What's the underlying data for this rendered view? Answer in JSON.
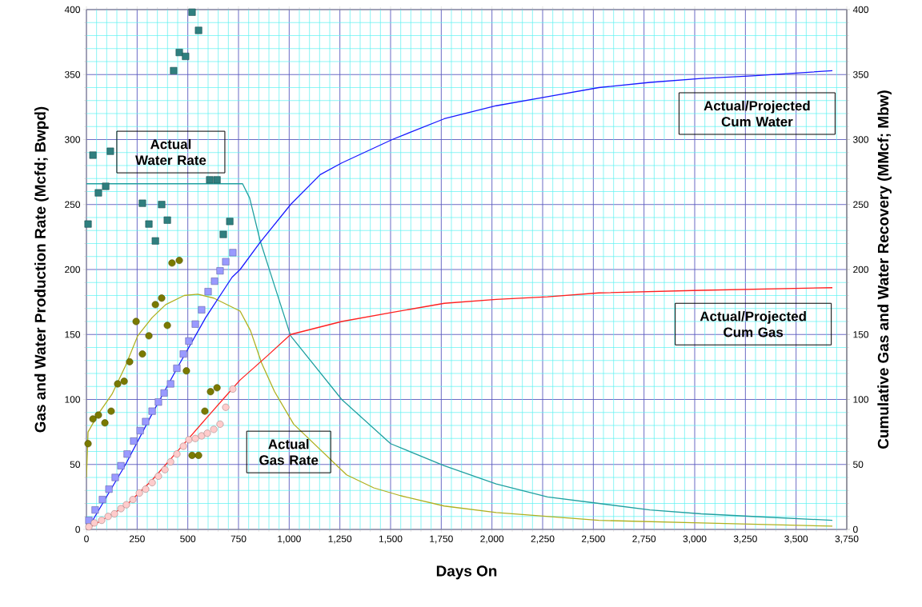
{
  "chart_data": {
    "type": "scatter",
    "xlabel": "Days On",
    "ylabel": "Gas and Water Production Rate (Mcfd; Bwpd)",
    "y2label": "Cumulative Gas and Water Recovery (MMcf; Mbw)",
    "annotations": [
      "Actual Water Rate",
      "Actual Gas Rate",
      "Actual/Projected Cum Water",
      "Actual/Projected Cum Gas"
    ],
    "xlim": [
      0,
      3750
    ],
    "ylim": [
      0,
      400
    ],
    "y2lim": [
      0,
      400
    ],
    "xticks": [
      0,
      {
        "value": 50,
        "label": null
      },
      {
        "value": 100,
        "label": null
      },
      {
        "value": 150,
        "label": null
      },
      {
        "value": 200,
        "label": null
      },
      250,
      {
        "value": 300,
        "label": null
      },
      {
        "value": 350,
        "label": null
      },
      {
        "value": 400,
        "label": null
      },
      {
        "value": 450,
        "label": null
      },
      500,
      {
        "value": 550,
        "label": null
      },
      {
        "value": 600,
        "label": null
      },
      {
        "value": 650,
        "label": null
      },
      {
        "value": 700,
        "label": null
      },
      750,
      {
        "value": 800,
        "label": null
      },
      {
        "value": 850,
        "label": null
      },
      {
        "value": 900,
        "label": null
      },
      {
        "value": 950,
        "label": null
      },
      {
        "value": 1000,
        "label": "1,000"
      },
      {
        "value": 1050,
        "label": null
      },
      {
        "value": 1100,
        "label": null
      },
      {
        "value": 1150,
        "label": null
      },
      {
        "value": 1200,
        "label": null
      },
      {
        "value": 1250,
        "label": "1,250"
      },
      {
        "value": 1300,
        "label": null
      },
      {
        "value": 1350,
        "label": null
      },
      {
        "value": 1400,
        "label": null
      },
      {
        "value": 1450,
        "label": null
      },
      {
        "value": 1500,
        "label": "1,500"
      },
      {
        "value": 1550,
        "label": null
      },
      {
        "value": 1600,
        "label": null
      },
      {
        "value": 1650,
        "label": null
      },
      {
        "value": 1700,
        "label": null
      },
      {
        "value": 1750,
        "label": "1,750"
      },
      {
        "value": 1800,
        "label": null
      },
      {
        "value": 1850,
        "label": null
      },
      {
        "value": 1900,
        "label": null
      },
      {
        "value": 1950,
        "label": null
      },
      {
        "value": 2000,
        "label": "2,000"
      },
      {
        "value": 2050,
        "label": null
      },
      {
        "value": 2100,
        "label": null
      },
      {
        "value": 2150,
        "label": null
      },
      {
        "value": 2200,
        "label": null
      },
      {
        "value": 2250,
        "label": "2,250"
      },
      {
        "value": 2300,
        "label": null
      },
      {
        "value": 2350,
        "label": null
      },
      {
        "value": 2400,
        "label": null
      },
      {
        "value": 2450,
        "label": null
      },
      {
        "value": 2500,
        "label": "2,500"
      },
      {
        "value": 2550,
        "label": null
      },
      {
        "value": 2600,
        "label": null
      },
      {
        "value": 2650,
        "label": null
      },
      {
        "value": 2700,
        "label": null
      },
      {
        "value": 2750,
        "label": "2,750"
      },
      {
        "value": 2800,
        "label": null
      },
      {
        "value": 2850,
        "label": null
      },
      {
        "value": 2900,
        "label": null
      },
      {
        "value": 2950,
        "label": null
      },
      {
        "value": 3000,
        "label": "3,000"
      },
      {
        "value": 3050,
        "label": null
      },
      {
        "value": 3100,
        "label": null
      },
      {
        "value": 3150,
        "label": null
      },
      {
        "value": 3200,
        "label": null
      },
      {
        "value": 3250,
        "label": "3,250"
      },
      {
        "value": 3300,
        "label": null
      },
      {
        "value": 3350,
        "label": null
      },
      {
        "value": 3400,
        "label": null
      },
      {
        "value": 3450,
        "label": null
      },
      {
        "value": 3500,
        "label": "3,500"
      },
      {
        "value": 3550,
        "label": null
      },
      {
        "value": 3600,
        "label": null
      },
      {
        "value": 3650,
        "label": null
      },
      {
        "value": 3700,
        "label": null
      },
      {
        "value": 3750,
        "label": "3,750"
      }
    ],
    "yticks": [
      0,
      {
        "value": 10,
        "label": null
      },
      {
        "value": 20,
        "label": null
      },
      {
        "value": 30,
        "label": null
      },
      {
        "value": 40,
        "label": null
      },
      50,
      {
        "value": 60,
        "label": null
      },
      {
        "value": 70,
        "label": null
      },
      {
        "value": 80,
        "label": null
      },
      {
        "value": 90,
        "label": null
      },
      100,
      {
        "value": 110,
        "label": null
      },
      {
        "value": 120,
        "label": null
      },
      {
        "value": 130,
        "label": null
      },
      {
        "value": 140,
        "label": null
      },
      150,
      {
        "value": 160,
        "label": null
      },
      {
        "value": 170,
        "label": null
      },
      {
        "value": 180,
        "label": null
      },
      {
        "value": 190,
        "label": null
      },
      200,
      {
        "value": 210,
        "label": null
      },
      {
        "value": 220,
        "label": null
      },
      {
        "value": 230,
        "label": null
      },
      {
        "value": 240,
        "label": null
      },
      250,
      {
        "value": 260,
        "label": null
      },
      {
        "value": 270,
        "label": null
      },
      {
        "value": 280,
        "label": null
      },
      {
        "value": 290,
        "label": null
      },
      300,
      {
        "value": 310,
        "label": null
      },
      {
        "value": 320,
        "label": null
      },
      {
        "value": 330,
        "label": null
      },
      {
        "value": 340,
        "label": null
      },
      350,
      {
        "value": 360,
        "label": null
      },
      {
        "value": 370,
        "label": null
      },
      {
        "value": 380,
        "label": null
      },
      {
        "value": 390,
        "label": null
      },
      400
    ],
    "y2ticks": [
      0,
      50,
      100,
      150,
      200,
      250,
      300,
      350,
      400
    ],
    "grid": true,
    "series": [
      {
        "type": "line",
        "marker": "none",
        "axis": "y",
        "color": "#20a0a0",
        "x": [
          0,
          770,
          805,
          857,
          904,
          1007,
          1259,
          1500,
          1765,
          2021,
          2274,
          2527,
          2779,
          3032,
          3285,
          3679
        ],
        "values": [
          266,
          266,
          255,
          222,
          199,
          149,
          100,
          66,
          49,
          35,
          25,
          20,
          15,
          12,
          10,
          7
        ]
      },
      {
        "type": "line",
        "marker": "none",
        "axis": "y",
        "color": "#b0b020",
        "x": [
          0,
          8,
          59,
          126,
          193,
          253,
          324,
          391,
          482,
          549,
          628,
          758,
          809,
          864,
          928,
          1022,
          1283,
          1417,
          1548,
          1765,
          2021,
          2527,
          3032,
          3679
        ],
        "values": [
          40,
          75,
          89,
          104,
          126,
          149,
          163,
          173,
          180,
          181,
          178,
          168,
          153,
          128,
          106,
          81,
          42,
          32,
          26,
          18,
          13,
          7,
          5,
          2.5
        ]
      },
      {
        "type": "line",
        "marker": "none",
        "axis": "y2",
        "color": "#1a1aff",
        "x": [
          12,
          193,
          324,
          454,
          588,
          718,
          758,
          857,
          1007,
          1153,
          1259,
          1508,
          1765,
          2021,
          2274,
          2527,
          2779,
          3032,
          3285,
          3679
        ],
        "values": [
          2,
          50,
          89,
          126,
          163,
          194,
          200,
          221,
          250,
          273,
          282,
          300,
          316,
          326,
          333,
          340,
          344,
          347,
          349,
          353
        ]
      },
      {
        "type": "line",
        "marker": "none",
        "axis": "y2",
        "color": "#ff2020",
        "x": [
          0,
          193,
          324,
          454,
          588,
          718,
          758,
          888,
          1007,
          1259,
          1508,
          1765,
          2021,
          2274,
          2527,
          3032,
          3679
        ],
        "values": [
          0,
          18,
          38,
          61,
          85,
          108,
          115,
          133,
          150,
          160,
          167,
          174,
          177,
          179,
          182,
          184,
          186
        ]
      },
      {
        "marker": "square",
        "axis": "y",
        "color": "#2f7f7f",
        "x": [
          8,
          32,
          59,
          95,
          118,
          276,
          308,
          340,
          371,
          399,
          430,
          458,
          489,
          521,
          553,
          608,
          644,
          675,
          707
        ],
        "values": [
          235,
          288,
          259,
          264,
          291,
          251,
          235,
          222,
          250,
          238,
          353,
          367,
          364,
          398,
          384,
          269,
          269,
          227,
          237
        ]
      },
      {
        "marker": "circle",
        "axis": "y",
        "color": "#7a7a00",
        "x": [
          8,
          32,
          59,
          91,
          122,
          154,
          186,
          213,
          245,
          276,
          308,
          340,
          371,
          399,
          422,
          458,
          493,
          521,
          553,
          584,
          612,
          644
        ],
        "values": [
          66,
          85,
          88,
          82,
          91,
          112,
          114,
          129,
          160,
          135,
          149,
          173,
          178,
          157,
          205,
          207,
          122,
          57,
          57,
          91,
          106,
          109
        ]
      },
      {
        "marker": "square",
        "axis": "y2",
        "color": "#9a9aff",
        "x": [
          12,
          43,
          79,
          111,
          142,
          170,
          201,
          233,
          265,
          292,
          324,
          355,
          383,
          415,
          446,
          478,
          505,
          537,
          568,
          600,
          632,
          659,
          687,
          722
        ],
        "values": [
          7,
          15,
          23,
          31,
          40,
          49,
          58,
          68,
          76,
          83,
          91,
          98,
          105,
          112,
          124,
          135,
          145,
          158,
          169,
          183,
          191,
          199,
          206,
          213
        ]
      },
      {
        "marker": "circle",
        "axis": "y2",
        "color": "#ffcccc",
        "x": [
          12,
          39,
          75,
          107,
          138,
          170,
          197,
          229,
          261,
          292,
          324,
          355,
          387,
          415,
          446,
          478,
          505,
          537,
          568,
          596,
          628,
          659,
          687,
          722
        ],
        "values": [
          2,
          5,
          7,
          10,
          12,
          16,
          19,
          23,
          28,
          31,
          36,
          41,
          46,
          52,
          58,
          64,
          69,
          70,
          72,
          74,
          77,
          81,
          94,
          108
        ]
      }
    ]
  }
}
